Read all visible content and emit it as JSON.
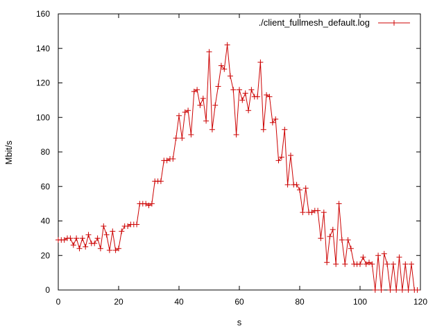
{
  "chart_data": {
    "type": "line",
    "title": "",
    "xlabel": "s",
    "ylabel": "Mbit/s",
    "xlim": [
      0,
      120
    ],
    "ylim": [
      0,
      160
    ],
    "xticks": [
      "0",
      "20",
      "40",
      "60",
      "80",
      "100",
      "120"
    ],
    "yticks": [
      "0",
      "20",
      "40",
      "60",
      "80",
      "100",
      "120",
      "140",
      "160"
    ],
    "grid": false,
    "legend_position": "top-right",
    "series": [
      {
        "name": "./client_fullmesh_default.log",
        "color": "#cc0000",
        "marker": "plus",
        "x": [
          0,
          1,
          2,
          3,
          4,
          5,
          6,
          7,
          8,
          9,
          10,
          11,
          12,
          13,
          14,
          15,
          16,
          17,
          18,
          19,
          20,
          21,
          22,
          23,
          24,
          25,
          26,
          27,
          28,
          29,
          30,
          31,
          32,
          33,
          34,
          35,
          36,
          37,
          38,
          39,
          40,
          41,
          42,
          43,
          44,
          45,
          46,
          47,
          48,
          49,
          50,
          51,
          52,
          53,
          54,
          55,
          56,
          57,
          58,
          59,
          60,
          61,
          62,
          63,
          64,
          65,
          66,
          67,
          68,
          69,
          70,
          71,
          72,
          73,
          74,
          75,
          76,
          77,
          78,
          79,
          80,
          81,
          82,
          83,
          84,
          85,
          86,
          87,
          88,
          89,
          90,
          91,
          92,
          93,
          94,
          95,
          96,
          97,
          98,
          99,
          100,
          101,
          102,
          103,
          104,
          105,
          106,
          107,
          108,
          109,
          110,
          111,
          112,
          113,
          114,
          115,
          116,
          117,
          118,
          119
        ],
        "y": [
          29,
          29,
          29,
          30,
          30,
          26,
          30,
          24,
          30,
          25,
          32,
          27,
          27,
          30,
          24,
          37,
          32,
          23,
          34,
          23,
          24,
          34,
          37,
          37,
          38,
          38,
          38,
          50,
          50,
          50,
          49,
          50,
          63,
          63,
          63,
          75,
          75,
          76,
          76,
          88,
          101,
          88,
          103,
          104,
          90,
          115,
          116,
          107,
          111,
          98,
          138,
          93,
          107,
          118,
          130,
          128,
          142,
          124,
          116,
          90,
          116,
          110,
          114,
          104,
          116,
          112,
          112,
          132,
          93,
          113,
          112,
          97,
          99,
          75,
          77,
          93,
          61,
          78,
          61,
          61,
          58,
          45,
          59,
          45,
          45,
          46,
          46,
          30,
          45,
          16,
          31,
          35,
          15,
          50,
          29,
          15,
          29,
          24,
          15,
          15,
          15,
          19,
          15,
          16,
          15,
          0,
          20,
          0,
          21,
          15,
          0,
          15,
          0,
          19,
          0,
          15,
          0,
          15,
          0,
          0
        ]
      }
    ]
  }
}
